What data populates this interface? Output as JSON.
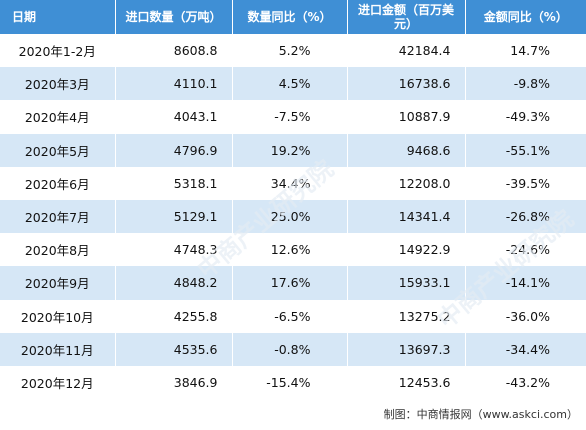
{
  "table": {
    "headers": [
      "日期",
      "进口数量（万吨）",
      "数量同比（%）",
      "进口金额（百万美元）",
      "金额同比（%）"
    ],
    "rows": [
      [
        "2020年1-2月",
        "8608.8",
        "5.2%",
        "42184.4",
        "14.7%"
      ],
      [
        "2020年3月",
        "4110.1",
        "4.5%",
        "16738.6",
        "-9.8%"
      ],
      [
        "2020年4月",
        "4043.1",
        "-7.5%",
        "10887.9",
        "-49.3%"
      ],
      [
        "2020年5月",
        "4796.9",
        "19.2%",
        "9468.6",
        "-55.1%"
      ],
      [
        "2020年6月",
        "5318.1",
        "34.4%",
        "12208.0",
        "-39.5%"
      ],
      [
        "2020年7月",
        "5129.1",
        "25.0%",
        "14341.4",
        "-26.8%"
      ],
      [
        "2020年8月",
        "4748.3",
        "12.6%",
        "14922.9",
        "-24.6%"
      ],
      [
        "2020年9月",
        "4848.2",
        "17.6%",
        "15933.1",
        "-14.1%"
      ],
      [
        "2020年10月",
        "4255.8",
        "-6.5%",
        "13275.2",
        "-36.0%"
      ],
      [
        "2020年11月",
        "4535.6",
        "-0.8%",
        "13697.3",
        "-34.4%"
      ],
      [
        "2020年12月",
        "3846.9",
        "-15.4%",
        "12453.6",
        "-43.2%"
      ]
    ]
  },
  "watermark": "中商产业研究院",
  "source": "制图：中商情报网（www.askci.com）",
  "colors": {
    "header_bg": "#3f8fd5",
    "header_text": "#ffffff",
    "row_alt": "#d6e7f6",
    "row_base": "#ffffff"
  }
}
